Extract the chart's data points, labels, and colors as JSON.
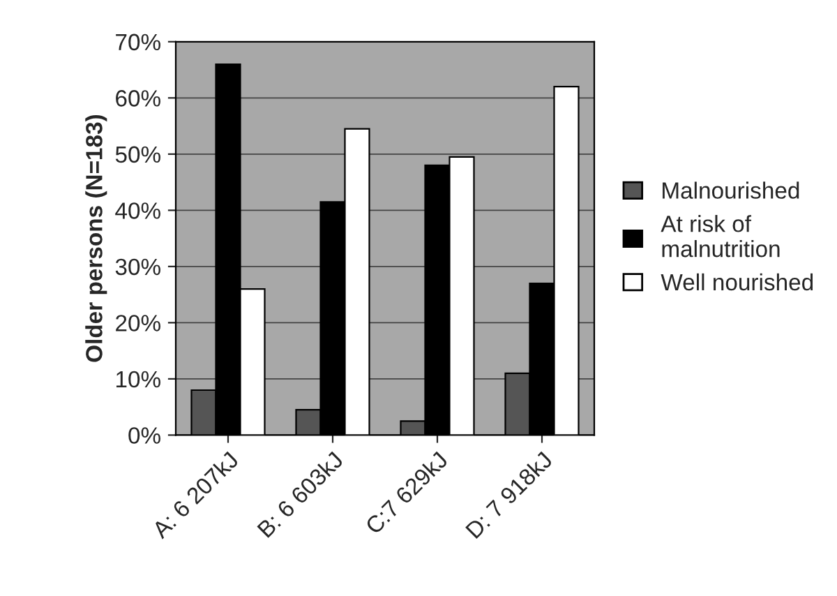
{
  "chart_data": {
    "type": "bar",
    "ylabel": "Older persons (N=183)",
    "categories": [
      "A: 6 207kJ",
      "B: 6 603kJ",
      "C:7 629kJ",
      "D: 7 918kJ"
    ],
    "series": [
      {
        "name": "Malnourished",
        "color": "#555555",
        "values": [
          8,
          4.5,
          2.5,
          11
        ]
      },
      {
        "name": "At risk of malnutrition",
        "color": "#000000",
        "values": [
          66,
          41.5,
          48,
          27
        ]
      },
      {
        "name": "Well nourished",
        "color": "#ffffff",
        "values": [
          26,
          54.5,
          49.5,
          62
        ]
      }
    ],
    "ylim": [
      0,
      70
    ],
    "yticks": [
      {
        "value": 0,
        "label": "0%"
      },
      {
        "value": 10,
        "label": "10%"
      },
      {
        "value": 20,
        "label": "20%"
      },
      {
        "value": 30,
        "label": "30%"
      },
      {
        "value": 40,
        "label": "40%"
      },
      {
        "value": 50,
        "label": "50%"
      },
      {
        "value": 60,
        "label": "60%"
      },
      {
        "value": 70,
        "label": "70%"
      }
    ],
    "grid": "y",
    "legend": "right"
  }
}
